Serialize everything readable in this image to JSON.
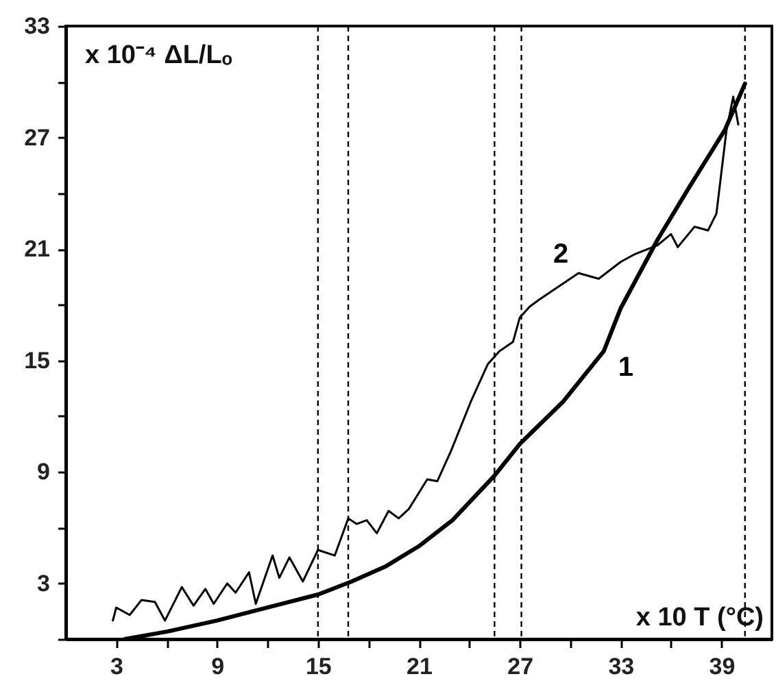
{
  "chart_data": {
    "type": "line",
    "xlabel": "x 10 T (°C)",
    "ylabel": "x 10⁻⁴ ΔL/Lₒ",
    "xlim": [
      0,
      42
    ],
    "ylim": [
      0,
      33
    ],
    "xticks": [
      3,
      {
        "value": 6,
        "label": null
      },
      9,
      {
        "value": 12,
        "label": null
      },
      15,
      {
        "value": 18,
        "label": null
      },
      21,
      {
        "value": 24,
        "label": null
      },
      27,
      {
        "value": 30,
        "label": null
      },
      33,
      {
        "value": 36,
        "label": null
      },
      39
    ],
    "yticks": [
      {
        "value": 0,
        "label": null
      },
      3,
      {
        "value": 6,
        "label": null
      },
      9,
      {
        "value": 12,
        "label": null
      },
      15,
      {
        "value": 18,
        "label": null
      },
      21,
      {
        "value": 24,
        "label": null
      },
      27,
      {
        "value": 30,
        "label": null
      },
      33
    ],
    "marker": "none",
    "line_style": "solid",
    "series": [
      {
        "name": "1",
        "color": "#000000",
        "x": [
          3.5,
          6,
          9,
          12,
          15,
          17,
          19,
          21,
          23,
          25.5,
          27,
          29.6,
          32,
          33,
          35.2,
          37,
          39.2,
          40.4
        ],
        "values": [
          0,
          0.4,
          1.0,
          1.7,
          2.4,
          3.1,
          3.9,
          5.0,
          6.4,
          8.8,
          10.5,
          12.8,
          15.5,
          17.8,
          21.5,
          24.2,
          27.4,
          29.9
        ]
      },
      {
        "name": "2",
        "color": "#000000",
        "x": [
          2.8,
          3.0,
          3.8,
          4.5,
          5.3,
          5.9,
          6.9,
          7.6,
          8.3,
          8.8,
          9.6,
          10.1,
          10.9,
          11.3,
          12.3,
          12.7,
          13.3,
          14.1,
          15.0,
          16.0,
          16.8,
          17.3,
          17.9,
          18.5,
          19.2,
          19.8,
          20.4,
          21.5,
          22.1,
          22.9,
          24.1,
          25.1,
          25.8,
          26.6,
          27.0,
          27.6,
          28.2,
          30.5,
          31.7,
          33.0,
          33.8,
          35.2,
          36.0,
          36.4,
          37.4,
          38.2,
          38.7,
          39.3,
          39.7,
          40.0
        ],
        "values": [
          1.0,
          1.7,
          1.3,
          2.1,
          2.0,
          1.0,
          2.8,
          1.8,
          2.7,
          1.9,
          3.0,
          2.5,
          3.6,
          1.9,
          4.5,
          3.3,
          4.4,
          3.1,
          4.8,
          4.5,
          6.5,
          6.2,
          6.4,
          5.7,
          6.9,
          6.5,
          7.0,
          8.6,
          8.5,
          10.1,
          12.8,
          14.8,
          15.5,
          16.0,
          17.3,
          17.9,
          18.3,
          19.7,
          19.4,
          20.3,
          20.7,
          21.2,
          21.8,
          21.1,
          22.2,
          22.0,
          22.9,
          27.4,
          29.2,
          27.7
        ]
      }
    ],
    "ref_lines": [
      {
        "axis": "x",
        "value": 15,
        "line_style": "dashed"
      },
      {
        "axis": "x",
        "value": 16.8,
        "line_style": "dashed"
      },
      {
        "axis": "x",
        "value": 25.5,
        "line_style": "dashed"
      },
      {
        "axis": "x",
        "value": 27.1,
        "line_style": "dashed"
      },
      {
        "axis": "x",
        "value": 40.4,
        "line_style": "dashed"
      }
    ]
  }
}
